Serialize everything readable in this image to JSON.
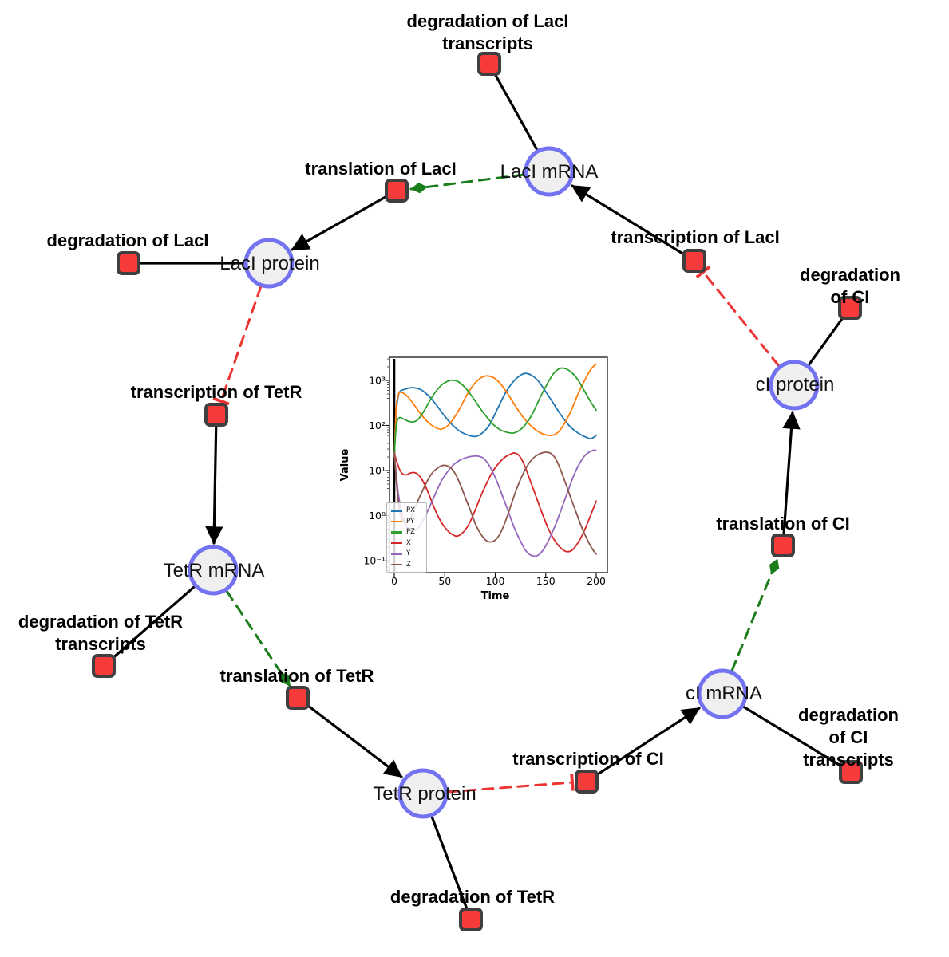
{
  "diagram": {
    "species": [
      {
        "id": "laci-mrna",
        "label": "LacI mRNA"
      },
      {
        "id": "laci-protein",
        "label": "LacI protein"
      },
      {
        "id": "tetr-mrna",
        "label": "TetR mRNA"
      },
      {
        "id": "tetr-protein",
        "label": "TetR protein"
      },
      {
        "id": "ci-mrna",
        "label": "cI mRNA"
      },
      {
        "id": "ci-protein",
        "label": "cI protein"
      }
    ],
    "reactions": [
      {
        "id": "degradation-laci-transcripts",
        "label": "degradation of LacI\ntranscripts"
      },
      {
        "id": "translation-laci",
        "label": "translation of LacI"
      },
      {
        "id": "transcription-laci",
        "label": "transcription of LacI"
      },
      {
        "id": "degradation-ci",
        "label": "degradation of CI"
      },
      {
        "id": "degradation-laci",
        "label": "degradation of LacI"
      },
      {
        "id": "transcription-tetr",
        "label": "transcription of TetR"
      },
      {
        "id": "degradation-tetr-transcripts",
        "label": "degradation of TetR\ntranscripts"
      },
      {
        "id": "translation-tetr",
        "label": "translation of TetR"
      },
      {
        "id": "degradation-tetr",
        "label": "degradation of TetR"
      },
      {
        "id": "transcription-ci",
        "label": "transcription of CI"
      },
      {
        "id": "degradation-ci-transcripts",
        "label": "degradation of CI\ntranscripts"
      },
      {
        "id": "translation-ci",
        "label": "translation of CI"
      }
    ],
    "colors": {
      "species_fill": "#efefef",
      "species_border": "#7373f2",
      "reaction_fill": "#f73b3b",
      "reaction_border": "#3f3f3f",
      "flow_edge": "#000000",
      "activation_edge": "#1a7d1a",
      "inhibition_edge": "#ee3333"
    }
  },
  "chart_data": {
    "type": "line",
    "title": "",
    "xlabel": "Time",
    "ylabel": "Value",
    "yscale": "log",
    "grid": false,
    "legend_position": "lower left",
    "xlim": [
      -5,
      211
    ],
    "ylim": [
      0.054,
      3200
    ],
    "x_ticks": [
      0,
      50,
      100,
      150,
      200
    ],
    "y_ticks": [
      "10³",
      "10²",
      "10¹",
      "10⁰",
      "10⁻¹"
    ],
    "y_tick_values": [
      1000,
      100,
      10,
      1,
      0.1
    ],
    "vline_x": 0,
    "series": [
      {
        "name": "PX",
        "color": "#1f77b4",
        "points": [
          [
            0,
            20
          ],
          [
            2,
            200
          ],
          [
            4,
            450
          ],
          [
            6,
            580
          ],
          [
            10,
            630
          ],
          [
            16,
            685
          ],
          [
            22,
            670
          ],
          [
            28,
            590
          ],
          [
            35,
            430
          ],
          [
            42,
            280
          ],
          [
            50,
            160
          ],
          [
            58,
            100
          ],
          [
            66,
            72
          ],
          [
            74,
            60
          ],
          [
            80,
            57
          ],
          [
            86,
            65
          ],
          [
            94,
            100
          ],
          [
            102,
            230
          ],
          [
            110,
            520
          ],
          [
            118,
            950
          ],
          [
            125,
            1300
          ],
          [
            130,
            1430
          ],
          [
            136,
            1300
          ],
          [
            143,
            950
          ],
          [
            150,
            560
          ],
          [
            158,
            300
          ],
          [
            166,
            160
          ],
          [
            174,
            95
          ],
          [
            182,
            68
          ],
          [
            189,
            56
          ],
          [
            195,
            51
          ],
          [
            200,
            60
          ]
        ]
      },
      {
        "name": "PY",
        "color": "#ff7f0e",
        "points": [
          [
            0,
            20
          ],
          [
            2,
            250
          ],
          [
            4,
            480
          ],
          [
            6,
            545
          ],
          [
            9,
            520
          ],
          [
            14,
            420
          ],
          [
            20,
            280
          ],
          [
            27,
            170
          ],
          [
            34,
            115
          ],
          [
            40,
            92
          ],
          [
            46,
            83
          ],
          [
            52,
            95
          ],
          [
            58,
            135
          ],
          [
            65,
            240
          ],
          [
            72,
            480
          ],
          [
            80,
            880
          ],
          [
            87,
            1180
          ],
          [
            92,
            1260
          ],
          [
            99,
            1130
          ],
          [
            106,
            800
          ],
          [
            113,
            480
          ],
          [
            120,
            270
          ],
          [
            128,
            150
          ],
          [
            136,
            95
          ],
          [
            144,
            70
          ],
          [
            150,
            62
          ],
          [
            156,
            60
          ],
          [
            162,
            70
          ],
          [
            168,
            105
          ],
          [
            175,
            210
          ],
          [
            182,
            500
          ],
          [
            189,
            1050
          ],
          [
            195,
            1800
          ],
          [
            200,
            2300
          ]
        ]
      },
      {
        "name": "PZ",
        "color": "#2ca02c",
        "points": [
          [
            0,
            20
          ],
          [
            2,
            100
          ],
          [
            5,
            148
          ],
          [
            9,
            140
          ],
          [
            14,
            124
          ],
          [
            19,
            120
          ],
          [
            24,
            140
          ],
          [
            30,
            220
          ],
          [
            36,
            380
          ],
          [
            42,
            600
          ],
          [
            48,
            830
          ],
          [
            54,
            980
          ],
          [
            58,
            1010
          ],
          [
            63,
            950
          ],
          [
            70,
            700
          ],
          [
            77,
            440
          ],
          [
            84,
            260
          ],
          [
            91,
            160
          ],
          [
            98,
            105
          ],
          [
            105,
            80
          ],
          [
            112,
            70
          ],
          [
            118,
            68
          ],
          [
            124,
            78
          ],
          [
            130,
            105
          ],
          [
            137,
            185
          ],
          [
            144,
            400
          ],
          [
            151,
            800
          ],
          [
            157,
            1350
          ],
          [
            163,
            1800
          ],
          [
            168,
            1860
          ],
          [
            174,
            1600
          ],
          [
            181,
            1100
          ],
          [
            188,
            600
          ],
          [
            194,
            350
          ],
          [
            200,
            220
          ]
        ]
      },
      {
        "name": "X",
        "color": "#d62728",
        "points": [
          [
            0,
            25
          ],
          [
            2,
            17
          ],
          [
            5,
            11
          ],
          [
            8,
            8.5
          ],
          [
            12,
            8
          ],
          [
            16,
            8.8
          ],
          [
            20,
            9
          ],
          [
            24,
            8
          ],
          [
            28,
            6
          ],
          [
            33,
            3.5
          ],
          [
            38,
            1.8
          ],
          [
            44,
            0.9
          ],
          [
            50,
            0.55
          ],
          [
            56,
            0.4
          ],
          [
            62,
            0.35
          ],
          [
            68,
            0.42
          ],
          [
            74,
            0.65
          ],
          [
            80,
            1.3
          ],
          [
            86,
            2.8
          ],
          [
            92,
            5.5
          ],
          [
            98,
            10
          ],
          [
            104,
            15
          ],
          [
            110,
            20
          ],
          [
            115,
            23
          ],
          [
            119,
            24.5
          ],
          [
            124,
            21
          ],
          [
            129,
            13
          ],
          [
            134,
            6.5
          ],
          [
            140,
            2.8
          ],
          [
            146,
            1.2
          ],
          [
            152,
            0.55
          ],
          [
            158,
            0.3
          ],
          [
            164,
            0.2
          ],
          [
            170,
            0.16
          ],
          [
            176,
            0.17
          ],
          [
            182,
            0.25
          ],
          [
            188,
            0.45
          ],
          [
            194,
            0.95
          ],
          [
            200,
            2.1
          ]
        ]
      },
      {
        "name": "Y",
        "color": "#9467bd",
        "points": [
          [
            0,
            25
          ],
          [
            2,
            8
          ],
          [
            4,
            3
          ],
          [
            7,
            1.3
          ],
          [
            10,
            0.75
          ],
          [
            13,
            0.55
          ],
          [
            16,
            0.47
          ],
          [
            19,
            0.45
          ],
          [
            23,
            0.5
          ],
          [
            28,
            0.75
          ],
          [
            34,
            1.4
          ],
          [
            40,
            2.8
          ],
          [
            46,
            5.5
          ],
          [
            52,
            9
          ],
          [
            58,
            13
          ],
          [
            64,
            16.5
          ],
          [
            70,
            19
          ],
          [
            76,
            20.5
          ],
          [
            82,
            21
          ],
          [
            88,
            19
          ],
          [
            94,
            13
          ],
          [
            100,
            7
          ],
          [
            106,
            3.2
          ],
          [
            112,
            1.4
          ],
          [
            118,
            0.6
          ],
          [
            124,
            0.3
          ],
          [
            130,
            0.17
          ],
          [
            136,
            0.13
          ],
          [
            142,
            0.13
          ],
          [
            148,
            0.18
          ],
          [
            154,
            0.32
          ],
          [
            160,
            0.65
          ],
          [
            166,
            1.5
          ],
          [
            172,
            3.5
          ],
          [
            178,
            8
          ],
          [
            184,
            15
          ],
          [
            190,
            23
          ],
          [
            195,
            27
          ],
          [
            198,
            28.5
          ],
          [
            200,
            27.5
          ]
        ]
      },
      {
        "name": "Z",
        "color": "#8c564b",
        "points": [
          [
            0,
            25
          ],
          [
            2,
            6
          ],
          [
            4,
            2
          ],
          [
            6,
            1.1
          ],
          [
            9,
            0.75
          ],
          [
            12,
            0.7
          ],
          [
            15,
            0.8
          ],
          [
            18,
            1.1
          ],
          [
            22,
            1.8
          ],
          [
            27,
            3.2
          ],
          [
            32,
            5.5
          ],
          [
            37,
            8.5
          ],
          [
            42,
            11
          ],
          [
            47,
            12.8
          ],
          [
            51,
            13
          ],
          [
            56,
            11.5
          ],
          [
            61,
            8
          ],
          [
            66,
            4.5
          ],
          [
            71,
            2.3
          ],
          [
            76,
            1.2
          ],
          [
            81,
            0.6
          ],
          [
            86,
            0.38
          ],
          [
            91,
            0.28
          ],
          [
            96,
            0.26
          ],
          [
            101,
            0.3
          ],
          [
            106,
            0.45
          ],
          [
            111,
            0.85
          ],
          [
            116,
            1.8
          ],
          [
            121,
            3.8
          ],
          [
            127,
            8
          ],
          [
            133,
            14
          ],
          [
            139,
            20
          ],
          [
            145,
            24
          ],
          [
            150,
            25.5
          ],
          [
            155,
            24
          ],
          [
            160,
            18
          ],
          [
            165,
            10
          ],
          [
            170,
            5
          ],
          [
            175,
            2.4
          ],
          [
            180,
            1.2
          ],
          [
            185,
            0.6
          ],
          [
            190,
            0.33
          ],
          [
            195,
            0.2
          ],
          [
            200,
            0.14
          ]
        ]
      }
    ]
  }
}
